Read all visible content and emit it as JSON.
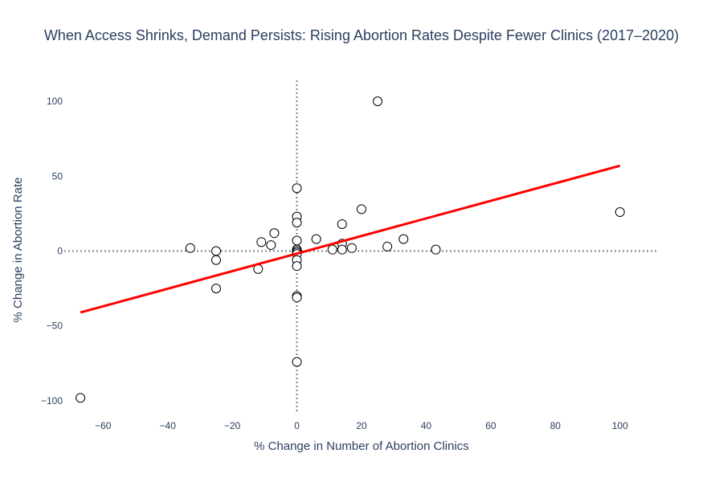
{
  "chart_data": {
    "type": "scatter",
    "title": "When Access Shrinks, Demand Persists: Rising Abortion Rates Despite Fewer Clinics (2017–2020)",
    "xlabel": "% Change in Number of Abortion Clinics",
    "ylabel": "% Change in Abortion Rate",
    "xlim": [
      -72,
      112
    ],
    "ylim": [
      -107,
      114
    ],
    "xticks": [
      -60,
      -40,
      -20,
      0,
      20,
      40,
      60,
      80,
      100
    ],
    "yticks": [
      -100,
      -50,
      0,
      50,
      100
    ],
    "xtick_labels": [
      "−60",
      "−40",
      "−20",
      "0",
      "20",
      "40",
      "60",
      "80",
      "100"
    ],
    "ytick_labels": [
      "−100",
      "−50",
      "0",
      "50",
      "100"
    ],
    "grid": false,
    "reference_lines": {
      "x": 0,
      "y": 0,
      "style": "dotted",
      "color": "#808080"
    },
    "points": [
      {
        "x": -67,
        "y": -98
      },
      {
        "x": -33,
        "y": 2
      },
      {
        "x": -25,
        "y": 0
      },
      {
        "x": -25,
        "y": -6
      },
      {
        "x": -25,
        "y": -25
      },
      {
        "x": -11,
        "y": 6
      },
      {
        "x": -12,
        "y": -12
      },
      {
        "x": -7,
        "y": 12
      },
      {
        "x": -8,
        "y": 4
      },
      {
        "x": 0,
        "y": 42
      },
      {
        "x": 0,
        "y": 23
      },
      {
        "x": 0,
        "y": 19
      },
      {
        "x": 0,
        "y": 7
      },
      {
        "x": 0,
        "y": 1
      },
      {
        "x": 0,
        "y": 0
      },
      {
        "x": 0,
        "y": -1
      },
      {
        "x": 0,
        "y": -2
      },
      {
        "x": 0,
        "y": -6
      },
      {
        "x": 0,
        "y": -10
      },
      {
        "x": 0,
        "y": -30
      },
      {
        "x": 0,
        "y": -31
      },
      {
        "x": 0,
        "y": -74
      },
      {
        "x": 6,
        "y": 8
      },
      {
        "x": 11,
        "y": 1
      },
      {
        "x": 14,
        "y": 18
      },
      {
        "x": 14,
        "y": 5
      },
      {
        "x": 14,
        "y": 1
      },
      {
        "x": 17,
        "y": 2
      },
      {
        "x": 20,
        "y": 28
      },
      {
        "x": 25,
        "y": 100
      },
      {
        "x": 28,
        "y": 3
      },
      {
        "x": 33,
        "y": 8
      },
      {
        "x": 43,
        "y": 1
      },
      {
        "x": 100,
        "y": 26
      }
    ],
    "trendline": {
      "x": [
        -67,
        100
      ],
      "y": [
        -41,
        57
      ],
      "color": "#ff0000"
    },
    "marker": {
      "fill": "#ffffff",
      "stroke": "#000000",
      "shape": "circle"
    }
  }
}
